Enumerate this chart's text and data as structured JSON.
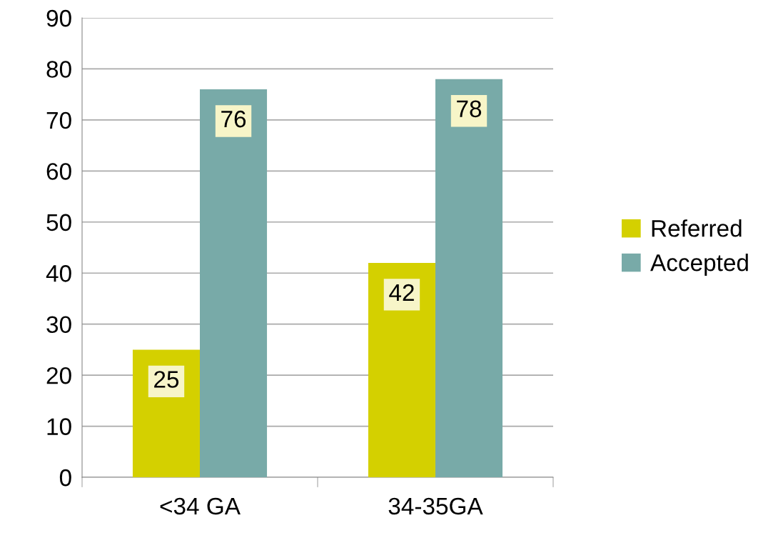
{
  "chart_data": {
    "type": "bar",
    "categories": [
      "<34 GA",
      "34-35GA"
    ],
    "series": [
      {
        "name": "Referred",
        "color": "#d4d000",
        "values": [
          25,
          42
        ]
      },
      {
        "name": "Accepted",
        "color": "#78aaa8",
        "values": [
          76,
          78
        ]
      }
    ],
    "ylim": [
      0,
      90
    ],
    "yticks": [
      0,
      10,
      20,
      30,
      40,
      50,
      60,
      70,
      80,
      90
    ],
    "grid": "y",
    "legend": "right",
    "data_labels": true
  }
}
